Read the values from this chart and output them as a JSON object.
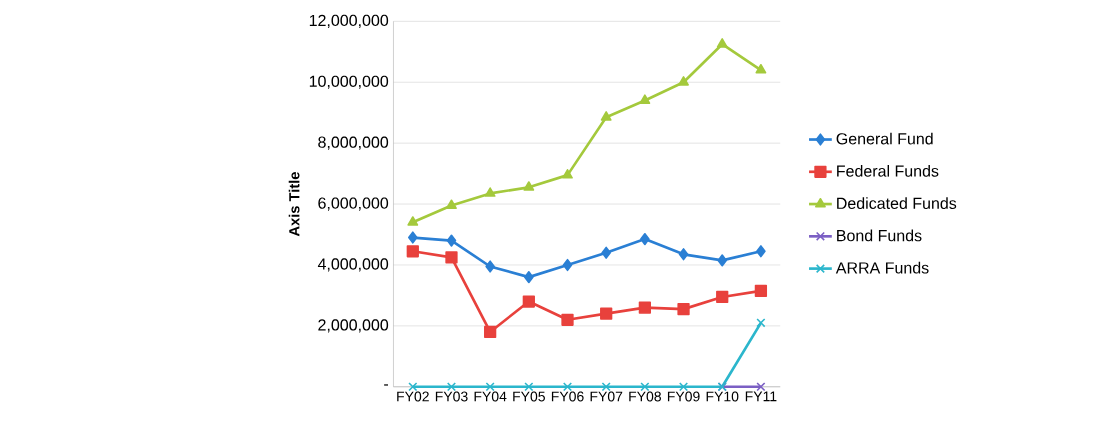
{
  "chart_data": {
    "type": "line",
    "ylabel": "Axis Title",
    "categories": [
      "FY02",
      "FY03",
      "FY04",
      "FY05",
      "FY06",
      "FY07",
      "FY08",
      "FY09",
      "FY10",
      "FY11"
    ],
    "series": [
      {
        "name": "General Fund",
        "color": "#2a7fd4",
        "marker": "diamond",
        "values": [
          4900000,
          4800000,
          3950000,
          3600000,
          4000000,
          4400000,
          4850000,
          4350000,
          4150000,
          4450000
        ]
      },
      {
        "name": "Federal Funds",
        "color": "#e8413c",
        "marker": "square",
        "values": [
          4450000,
          4250000,
          1800000,
          2800000,
          2200000,
          2400000,
          2600000,
          2550000,
          2950000,
          3150000
        ]
      },
      {
        "name": "Dedicated Funds",
        "color": "#a4c93c",
        "marker": "triangle",
        "values": [
          5400000,
          5950000,
          6350000,
          6550000,
          6950000,
          8850000,
          9400000,
          10000000,
          11250000,
          10400000
        ]
      },
      {
        "name": "Bond Funds",
        "color": "#7b5fc4",
        "marker": "cross",
        "values": [
          null,
          null,
          null,
          null,
          null,
          null,
          null,
          null,
          0,
          0
        ]
      },
      {
        "name": "ARRA Funds",
        "color": "#2bb6cc",
        "marker": "cross",
        "values": [
          0,
          0,
          0,
          0,
          0,
          0,
          0,
          0,
          0,
          2100000
        ]
      }
    ],
    "ylim": [
      0,
      12000000
    ],
    "yticks": [
      {
        "value": 0,
        "label": "-"
      },
      {
        "value": 2000000,
        "label": "2,000,000"
      },
      {
        "value": 4000000,
        "label": "4,000,000"
      },
      {
        "value": 6000000,
        "label": "6,000,000"
      },
      {
        "value": 8000000,
        "label": "8,000,000"
      },
      {
        "value": 10000000,
        "label": "10,000,000"
      },
      {
        "value": 12000000,
        "label": "12,000,000"
      }
    ],
    "grid": "y",
    "legend": "right"
  }
}
